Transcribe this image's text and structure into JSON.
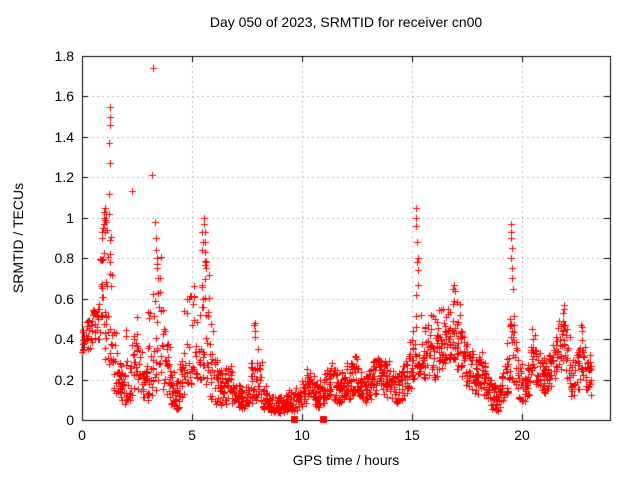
{
  "window": {
    "background": "#ffffff",
    "text_color": "#000000"
  },
  "chart_data": {
    "type": "scatter",
    "title": "Day 050 of 2023, SRMTID for receiver cn00",
    "xlabel": "GPS time / hours",
    "ylabel": "SRMTID / TECUs",
    "xlim": [
      0,
      24
    ],
    "ylim": [
      0,
      1.8
    ],
    "xtick_values": [
      0,
      5,
      10,
      15,
      20
    ],
    "xtick_labels": [
      "0",
      "5",
      "10",
      "15",
      "20"
    ],
    "ytick_values": [
      0,
      0.2,
      0.4,
      0.6,
      0.8,
      1.0,
      1.2,
      1.4,
      1.6,
      1.8
    ],
    "ytick_labels": [
      "0",
      "0.2",
      "0.4",
      "0.6",
      "0.8",
      "1",
      "1.2",
      "1.4",
      "1.6",
      "1.8"
    ],
    "grid": true,
    "grid_color": "#b9b9b9",
    "border_color": "#000000",
    "marker": {
      "shape": "plus",
      "color": "#ff0000",
      "size": 7
    },
    "square_marker": {
      "shape": "filled-square",
      "color": "#ff0000",
      "size": 7
    },
    "legend": "none",
    "seed": 7,
    "bin_width_hours": 0.2,
    "envelope_bins": [
      [
        0.0,
        0.33,
        0.45,
        12
      ],
      [
        0.2,
        0.35,
        0.5,
        13
      ],
      [
        0.4,
        0.38,
        0.55,
        13
      ],
      [
        0.6,
        0.4,
        0.58,
        12
      ],
      [
        0.8,
        0.35,
        0.8,
        13
      ],
      [
        1.0,
        0.3,
        0.97,
        15
      ],
      [
        1.2,
        0.22,
        0.92,
        14
      ],
      [
        1.4,
        0.12,
        0.45,
        14
      ],
      [
        1.6,
        0.08,
        0.3,
        16
      ],
      [
        1.8,
        0.08,
        0.28,
        16
      ],
      [
        2.0,
        0.1,
        0.45,
        14
      ],
      [
        2.2,
        0.12,
        0.5,
        13
      ],
      [
        2.4,
        0.15,
        0.55,
        13
      ],
      [
        2.6,
        0.1,
        0.35,
        14
      ],
      [
        2.8,
        0.05,
        0.3,
        15
      ],
      [
        3.0,
        0.12,
        0.55,
        13
      ],
      [
        3.2,
        0.15,
        0.92,
        14
      ],
      [
        3.4,
        0.2,
        0.85,
        13
      ],
      [
        3.6,
        0.15,
        0.6,
        13
      ],
      [
        3.8,
        0.1,
        0.4,
        14
      ],
      [
        4.0,
        0.05,
        0.25,
        16
      ],
      [
        4.2,
        0.05,
        0.2,
        16
      ],
      [
        4.4,
        0.08,
        0.3,
        14
      ],
      [
        4.6,
        0.12,
        0.6,
        13
      ],
      [
        4.8,
        0.18,
        0.65,
        12
      ],
      [
        5.0,
        0.25,
        0.7,
        12
      ],
      [
        5.2,
        0.2,
        0.6,
        12
      ],
      [
        5.4,
        0.2,
        0.95,
        15
      ],
      [
        5.6,
        0.15,
        0.8,
        14
      ],
      [
        5.8,
        0.1,
        0.48,
        14
      ],
      [
        6.0,
        0.08,
        0.3,
        16
      ],
      [
        6.2,
        0.06,
        0.25,
        16
      ],
      [
        6.4,
        0.08,
        0.28,
        15
      ],
      [
        6.6,
        0.1,
        0.28,
        15
      ],
      [
        6.8,
        0.06,
        0.2,
        16
      ],
      [
        7.0,
        0.05,
        0.18,
        16
      ],
      [
        7.2,
        0.05,
        0.15,
        16
      ],
      [
        7.4,
        0.06,
        0.18,
        16
      ],
      [
        7.6,
        0.08,
        0.3,
        14
      ],
      [
        7.8,
        0.1,
        0.48,
        14
      ],
      [
        8.0,
        0.08,
        0.3,
        14
      ],
      [
        8.2,
        0.05,
        0.18,
        16
      ],
      [
        8.4,
        0.04,
        0.13,
        16
      ],
      [
        8.6,
        0.03,
        0.12,
        16
      ],
      [
        8.8,
        0.03,
        0.11,
        16
      ],
      [
        9.0,
        0.03,
        0.12,
        16
      ],
      [
        9.2,
        0.04,
        0.13,
        16
      ],
      [
        9.4,
        0.05,
        0.15,
        15
      ],
      [
        9.6,
        0.04,
        0.16,
        15
      ],
      [
        9.8,
        0.05,
        0.18,
        15
      ],
      [
        10.0,
        0.06,
        0.2,
        15
      ],
      [
        10.2,
        0.1,
        0.25,
        16
      ],
      [
        10.4,
        0.08,
        0.22,
        16
      ],
      [
        10.6,
        0.06,
        0.18,
        16
      ],
      [
        10.8,
        0.08,
        0.2,
        16
      ],
      [
        11.0,
        0.1,
        0.28,
        16
      ],
      [
        11.2,
        0.12,
        0.3,
        16
      ],
      [
        11.4,
        0.1,
        0.25,
        16
      ],
      [
        11.6,
        0.08,
        0.2,
        16
      ],
      [
        11.8,
        0.1,
        0.25,
        16
      ],
      [
        12.0,
        0.1,
        0.28,
        16
      ],
      [
        12.2,
        0.12,
        0.3,
        16
      ],
      [
        12.4,
        0.12,
        0.32,
        16
      ],
      [
        12.6,
        0.1,
        0.25,
        16
      ],
      [
        12.8,
        0.08,
        0.22,
        16
      ],
      [
        13.0,
        0.1,
        0.25,
        16
      ],
      [
        13.2,
        0.12,
        0.3,
        16
      ],
      [
        13.4,
        0.15,
        0.33,
        16
      ],
      [
        13.6,
        0.12,
        0.3,
        16
      ],
      [
        13.8,
        0.1,
        0.3,
        16
      ],
      [
        14.0,
        0.1,
        0.25,
        16
      ],
      [
        14.2,
        0.08,
        0.22,
        16
      ],
      [
        14.4,
        0.1,
        0.25,
        16
      ],
      [
        14.6,
        0.12,
        0.3,
        15
      ],
      [
        14.8,
        0.15,
        0.4,
        14
      ],
      [
        15.0,
        0.2,
        0.6,
        14
      ],
      [
        15.2,
        0.22,
        0.55,
        14
      ],
      [
        15.4,
        0.18,
        0.45,
        14
      ],
      [
        15.6,
        0.2,
        0.5,
        14
      ],
      [
        15.8,
        0.25,
        0.55,
        14
      ],
      [
        16.0,
        0.2,
        0.5,
        16
      ],
      [
        16.2,
        0.25,
        0.55,
        16
      ],
      [
        16.4,
        0.28,
        0.6,
        16
      ],
      [
        16.6,
        0.3,
        0.63,
        16
      ],
      [
        16.8,
        0.3,
        0.66,
        16
      ],
      [
        17.0,
        0.25,
        0.6,
        16
      ],
      [
        17.2,
        0.2,
        0.5,
        16
      ],
      [
        17.4,
        0.15,
        0.4,
        16
      ],
      [
        17.6,
        0.15,
        0.35,
        16
      ],
      [
        17.8,
        0.12,
        0.3,
        16
      ],
      [
        18.0,
        0.15,
        0.35,
        15
      ],
      [
        18.2,
        0.12,
        0.3,
        16
      ],
      [
        18.4,
        0.08,
        0.22,
        16
      ],
      [
        18.6,
        0.05,
        0.18,
        16
      ],
      [
        18.8,
        0.04,
        0.16,
        16
      ],
      [
        19.0,
        0.08,
        0.25,
        15
      ],
      [
        19.2,
        0.12,
        0.4,
        14
      ],
      [
        19.4,
        0.2,
        0.6,
        14
      ],
      [
        19.6,
        0.18,
        0.55,
        14
      ],
      [
        19.8,
        0.1,
        0.3,
        15
      ],
      [
        20.0,
        0.08,
        0.22,
        16
      ],
      [
        20.2,
        0.12,
        0.28,
        16
      ],
      [
        20.4,
        0.18,
        0.45,
        14
      ],
      [
        20.6,
        0.15,
        0.35,
        15
      ],
      [
        20.8,
        0.12,
        0.3,
        16
      ],
      [
        21.0,
        0.12,
        0.32,
        16
      ],
      [
        21.2,
        0.15,
        0.35,
        15
      ],
      [
        21.4,
        0.2,
        0.42,
        14
      ],
      [
        21.6,
        0.25,
        0.5,
        14
      ],
      [
        21.8,
        0.28,
        0.55,
        14
      ],
      [
        22.0,
        0.18,
        0.45,
        14
      ],
      [
        22.2,
        0.1,
        0.3,
        15
      ],
      [
        22.4,
        0.12,
        0.35,
        14
      ],
      [
        22.6,
        0.2,
        0.47,
        13
      ],
      [
        22.8,
        0.12,
        0.38,
        12
      ],
      [
        23.0,
        0.1,
        0.3,
        9
      ]
    ],
    "spike_points": [
      [
        0.9,
        0.9
      ],
      [
        0.93,
        0.93
      ],
      [
        0.96,
        0.95
      ],
      [
        0.98,
        0.97
      ],
      [
        1.0,
        1.0
      ],
      [
        1.02,
        1.03
      ],
      [
        1.05,
        1.05
      ],
      [
        1.05,
        0.99
      ],
      [
        1.08,
        1.02
      ],
      [
        1.1,
        0.98
      ],
      [
        1.12,
        0.94
      ],
      [
        1.03,
        0.93
      ],
      [
        1.25,
        1.55
      ],
      [
        1.25,
        1.5
      ],
      [
        1.26,
        1.46
      ],
      [
        1.23,
        1.37
      ],
      [
        1.26,
        1.27
      ],
      [
        1.23,
        1.12
      ],
      [
        1.24,
        1.02
      ],
      [
        2.27,
        1.13
      ],
      [
        3.23,
        1.74
      ],
      [
        3.18,
        1.21
      ],
      [
        3.3,
        0.98
      ],
      [
        3.35,
        0.9
      ],
      [
        3.37,
        0.84
      ],
      [
        3.4,
        0.8
      ],
      [
        3.42,
        0.75
      ],
      [
        3.45,
        0.7
      ],
      [
        5.45,
        0.93
      ],
      [
        5.5,
        0.88
      ],
      [
        5.55,
        1.0
      ],
      [
        5.55,
        0.97
      ],
      [
        5.57,
        0.93
      ],
      [
        5.6,
        0.88
      ],
      [
        5.6,
        0.83
      ],
      [
        5.62,
        0.78
      ],
      [
        5.65,
        0.75
      ],
      [
        5.5,
        0.6
      ],
      [
        7.85,
        0.48
      ],
      [
        7.86,
        0.44
      ],
      [
        7.88,
        0.41
      ],
      [
        15.18,
        1.05
      ],
      [
        15.2,
        1.0
      ],
      [
        15.2,
        0.96
      ],
      [
        15.22,
        0.88
      ],
      [
        15.25,
        0.8
      ],
      [
        15.22,
        0.78
      ],
      [
        15.25,
        0.74
      ],
      [
        15.27,
        0.67
      ],
      [
        15.2,
        0.62
      ],
      [
        16.9,
        0.67
      ],
      [
        16.85,
        0.65
      ],
      [
        16.95,
        0.64
      ],
      [
        19.5,
        0.97
      ],
      [
        19.5,
        0.93
      ],
      [
        19.52,
        0.9
      ],
      [
        19.55,
        0.85
      ],
      [
        19.5,
        0.8
      ],
      [
        19.53,
        0.75
      ],
      [
        19.55,
        0.7
      ],
      [
        19.57,
        0.65
      ],
      [
        21.9,
        0.57
      ],
      [
        21.92,
        0.55
      ],
      [
        21.88,
        0.53
      ],
      [
        22.7,
        0.47
      ],
      [
        22.72,
        0.44
      ],
      [
        23.1,
        0.32
      ],
      [
        23.15,
        0.25
      ],
      [
        23.12,
        0.2
      ]
    ],
    "square_points": [
      [
        9.65,
        0.005
      ],
      [
        10.95,
        0.005
      ]
    ]
  }
}
